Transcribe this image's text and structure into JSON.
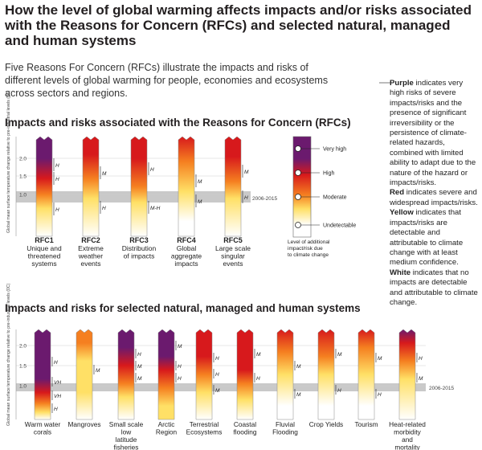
{
  "title": "How the level of global warming affects impacts and/or risks associated with the Reasons for Concern (RFCs) and selected natural, managed and human systems",
  "intro": "Five Reasons For Concern (RFCs) illustrate the impacts and risks of different levels of global warming for people, economies and ecosystems across sectors and regions.",
  "section1_title": "Impacts and risks associated with the Reasons for Concern (RFCs)",
  "section2_title": "Impacts and risks for selected natural, managed and human systems",
  "y_axis_label": "Global mean surface temperature change relative to pre-industrial levels (0C)",
  "ticks": [
    "2.0",
    "1.5",
    "1.0"
  ],
  "period_label": "2006-2015",
  "rfcs": [
    {
      "label1": "RFC1",
      "label2": "Unique and threatened systems",
      "confidence": [
        "H",
        "H",
        "H"
      ]
    },
    {
      "label1": "RFC2",
      "label2": "Extreme weather events",
      "confidence": [
        "M",
        "H"
      ]
    },
    {
      "label1": "RFC3",
      "label2": "Distribution of impacts",
      "confidence": [
        "H",
        "M-H"
      ]
    },
    {
      "label1": "RFC4",
      "label2": "Global aggregate impacts",
      "confidence": [
        "M",
        "M"
      ]
    },
    {
      "label1": "RFC5",
      "label2": "Large scale singular events",
      "confidence": [
        "M",
        "H"
      ]
    }
  ],
  "legend": {
    "levels": [
      "Very high",
      "High",
      "Moderate",
      "Undetectable"
    ],
    "caption": "Level of additional impact/risk due to climate change"
  },
  "color_key": [
    {
      "term": "Purple",
      "text": " indicates very high risks of severe impacts/risks and the presence of significant irreversibility or the persistence of climate-related hazards, combined with limited ability to adapt due to the nature of the hazard or impacts/risks."
    },
    {
      "term": "Red",
      "text": " indicates severe and widespread impacts/risks."
    },
    {
      "term": "Yellow",
      "text": " indicates that impacts/risks are detectable and attributable to climate change with at least medium confidence."
    },
    {
      "term": "White",
      "text": " indicates that no impacts are detectable and attributable to climate change."
    }
  ],
  "systems": [
    {
      "label": "Warm water corals",
      "confidence": [
        "H",
        "VH",
        "VH",
        "H"
      ]
    },
    {
      "label": "Mangroves",
      "confidence": [
        "M"
      ]
    },
    {
      "label": "Small scale low latitude fisheries",
      "confidence": [
        "H",
        "M",
        "M"
      ]
    },
    {
      "label": "Arctic Region",
      "confidence": [
        "M",
        "H",
        "H"
      ]
    },
    {
      "label": "Terrestrial Ecosystems",
      "confidence": [
        "H",
        "H",
        "M"
      ]
    },
    {
      "label": "Coastal flooding",
      "confidence": [
        "M",
        "H"
      ]
    },
    {
      "label": "Fluvial Flooding",
      "confidence": [
        "M",
        "M"
      ]
    },
    {
      "label": "Crop Yields",
      "confidence": [
        "M",
        "H"
      ]
    },
    {
      "label": "Tourism",
      "confidence": [
        "M",
        "H"
      ]
    },
    {
      "label": "Heat-related morbidity and mortality",
      "confidence": [
        "H",
        "M"
      ]
    }
  ],
  "colors": {
    "purple": "#6b1a6e",
    "red": "#d7191c",
    "orange": "#f57f20",
    "yellow": "#ffe066",
    "white": "#ffffff",
    "band": "#c9c9c9"
  }
}
